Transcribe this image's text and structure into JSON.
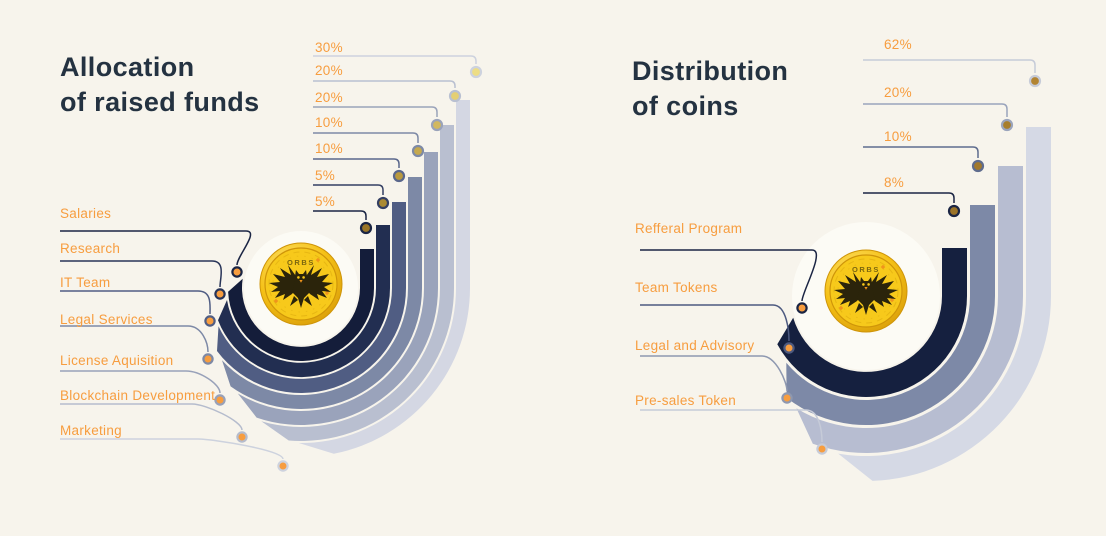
{
  "page": {
    "background": "#f7f4ec",
    "inner_disc": "#fcfbf5",
    "title_color": "#243241",
    "accent_orange": "#f79d3f"
  },
  "coin": {
    "text": "ORBS",
    "face": "#f7c91b",
    "rim_light": "#ffe574",
    "rim_mid": "#f5c117",
    "rim_dark": "#d79b08",
    "edge_line": "#cf9509",
    "deco_line": "#e2b012",
    "emblem": "#2b240b",
    "emblem_text": "#6f5c0e",
    "spark": "#f0941c",
    "eye": "#f6c518"
  },
  "charts": [
    {
      "title_line1": "Allocation",
      "title_line2": "of raised funds",
      "percent_column_top_to_bottom": [
        "30%",
        "20%",
        "20%",
        "10%",
        "10%",
        "5%",
        "5%"
      ],
      "items": [
        {
          "label": "Salaries",
          "pct": "5%",
          "value": 5,
          "ring_color": "#141d3a",
          "connector_color": "#1b2544",
          "pct_line_color": "#1b2544",
          "pct_dot_color": "#9a7527"
        },
        {
          "label": "Research",
          "pct": "5%",
          "value": 5,
          "ring_color": "#222e51",
          "connector_color": "#283458",
          "pct_line_color": "#343f63",
          "pct_dot_color": "#ab8a33"
        },
        {
          "label": "IT Team",
          "pct": "10%",
          "value": 10,
          "ring_color": "#505d83",
          "connector_color": "#505d83",
          "pct_line_color": "#5a678c",
          "pct_dot_color": "#ba9a3f"
        },
        {
          "label": "Legal Services",
          "pct": "10%",
          "value": 10,
          "ring_color": "#7d89a6",
          "connector_color": "#7d89a6",
          "pct_line_color": "#7e8aa6",
          "pct_dot_color": "#c6a94e"
        },
        {
          "label": "License Aquisition",
          "pct": "20%",
          "value": 20,
          "ring_color": "#9aa3bb",
          "connector_color": "#98a1b9",
          "pct_line_color": "#9aa3ba",
          "pct_dot_color": "#d2b85f"
        },
        {
          "label": "Blockchain Development",
          "pct": "20%",
          "value": 20,
          "ring_color": "#b9bfd0",
          "connector_color": "#b5bccd",
          "pct_line_color": "#b9c0d1",
          "pct_dot_color": "#e4cf74"
        },
        {
          "label": "Marketing",
          "pct": "30%",
          "value": 30,
          "ring_color": "#d4d7e3",
          "connector_color": "#cdd2de",
          "pct_line_color": "#cdd2de",
          "pct_dot_color": "#eddd85"
        }
      ]
    },
    {
      "title_line1": "Distribution",
      "title_line2": "of coins",
      "percent_column_top_to_bottom": [
        "62%",
        "20%",
        "10%",
        "8%"
      ],
      "items": [
        {
          "label": "Refferal Program",
          "pct": "8%",
          "value": 8,
          "ring_color": "#15203f",
          "connector_color": "#1b2544",
          "pct_line_color": "#1b2544",
          "pct_dot_color": "#9c7429"
        },
        {
          "label": "Team Tokens",
          "pct": "10%",
          "value": 10,
          "ring_color": "#7d89a7",
          "connector_color": "#4d5a80",
          "pct_line_color": "#5f6c8e",
          "pct_dot_color": "#a2792c"
        },
        {
          "label": "Legal and Advisory",
          "pct": "20%",
          "value": 20,
          "ring_color": "#b7bdd1",
          "connector_color": "#8e98b0",
          "pct_line_color": "#9aa4bc",
          "pct_dot_color": "#a87e2c"
        },
        {
          "label": "Pre-sales Token",
          "pct": "62%",
          "value": 62,
          "ring_color": "#d5d9e5",
          "connector_color": "#c6cbd8",
          "pct_line_color": "#c6cbd8",
          "pct_dot_color": "#b28432"
        }
      ]
    }
  ],
  "chart_data": [
    {
      "type": "bar",
      "variant": "circular-radial (J-shaped concentric ring bars, inner ring to outer ring)",
      "title": "Allocation of raised funds",
      "categories": [
        "Salaries",
        "Research",
        "IT Team",
        "Legal Services",
        "License Aquisition",
        "Blockchain Development",
        "Marketing"
      ],
      "values": [
        5,
        5,
        10,
        10,
        20,
        20,
        30
      ],
      "unit": "%",
      "percent_labels_shown_top_to_bottom": [
        "30%",
        "20%",
        "20%",
        "10%",
        "10%",
        "5%",
        "5%"
      ],
      "legend_position": "category labels left with leader lines, percent labels top-right with leader dots",
      "grid": false
    },
    {
      "type": "bar",
      "variant": "circular-radial (J-shaped concentric ring bars, inner ring to outer ring)",
      "title": "Distribution of coins",
      "categories": [
        "Refferal Program",
        "Team Tokens",
        "Legal and Advisory",
        "Pre-sales Token"
      ],
      "values": [
        8,
        10,
        20,
        62
      ],
      "unit": "%",
      "percent_labels_shown_top_to_bottom": [
        "62%",
        "20%",
        "10%",
        "8%"
      ],
      "legend_position": "category labels left with leader lines, percent labels top-right with leader dots",
      "grid": false
    }
  ]
}
